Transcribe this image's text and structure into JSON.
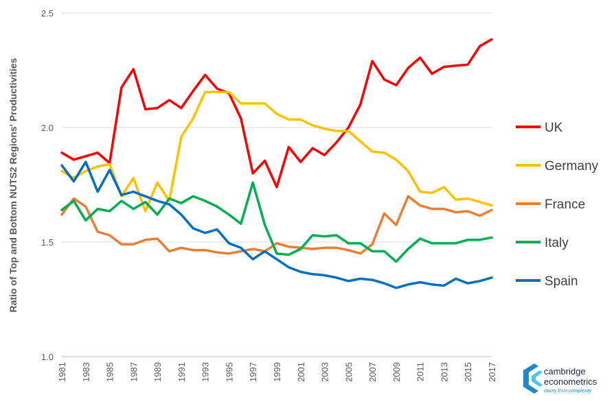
{
  "chart_data": {
    "type": "line",
    "title": "",
    "xlabel": "",
    "ylabel": "Ratio of Top and Bottom NUTS2 Regions' Productivities",
    "ylim": [
      1.0,
      2.5
    ],
    "yticks": [
      "1.0",
      "1.5",
      "2.0",
      "2.5"
    ],
    "grid": "horizontal",
    "legend_position": "right",
    "x": [
      1981,
      1982,
      1983,
      1984,
      1985,
      1986,
      1987,
      1988,
      1989,
      1990,
      1991,
      1992,
      1993,
      1994,
      1995,
      1996,
      1997,
      1998,
      1999,
      2000,
      2001,
      2002,
      2003,
      2004,
      2005,
      2006,
      2007,
      2008,
      2009,
      2010,
      2011,
      2012,
      2013,
      2014,
      2015,
      2016,
      2017
    ],
    "xtick_labels": [
      "1981",
      "1983",
      "1985",
      "1987",
      "1989",
      "1991",
      "1993",
      "1995",
      "1997",
      "1999",
      "2001",
      "2003",
      "2005",
      "2007",
      "2009",
      "2011",
      "2013",
      "2015",
      "2017"
    ],
    "series": [
      {
        "name": "UK",
        "color": "#ff0000",
        "values": [
          1.89,
          1.86,
          1.875,
          1.89,
          1.845,
          2.175,
          2.255,
          2.08,
          2.085,
          2.12,
          2.085,
          2.16,
          2.23,
          2.17,
          2.15,
          2.04,
          1.8,
          1.855,
          1.74,
          1.915,
          1.85,
          1.91,
          1.88,
          1.935,
          2.0,
          2.1,
          2.29,
          2.21,
          2.185,
          2.26,
          2.305,
          2.235,
          2.265,
          2.27,
          2.275,
          2.355,
          2.385
        ]
      },
      {
        "name": "Germany",
        "color": "#ffc000",
        "values": [
          1.81,
          1.78,
          1.81,
          1.83,
          1.84,
          1.7,
          1.78,
          1.635,
          1.76,
          1.68,
          1.96,
          2.04,
          2.155,
          2.155,
          2.155,
          2.105,
          2.105,
          2.105,
          2.06,
          2.035,
          2.035,
          2.01,
          1.995,
          1.985,
          1.985,
          1.94,
          1.895,
          1.89,
          1.86,
          1.81,
          1.72,
          1.715,
          1.74,
          1.685,
          1.69,
          1.675,
          1.66
        ]
      },
      {
        "name": "France",
        "color": "#ed7d31",
        "values": [
          1.62,
          1.69,
          1.655,
          1.545,
          1.53,
          1.49,
          1.49,
          1.51,
          1.515,
          1.46,
          1.475,
          1.465,
          1.465,
          1.455,
          1.45,
          1.46,
          1.47,
          1.46,
          1.495,
          1.48,
          1.475,
          1.47,
          1.475,
          1.475,
          1.465,
          1.45,
          1.49,
          1.625,
          1.575,
          1.7,
          1.66,
          1.645,
          1.645,
          1.63,
          1.635,
          1.615,
          1.64
        ]
      },
      {
        "name": "Italy",
        "color": "#00b050",
        "values": [
          1.64,
          1.68,
          1.595,
          1.645,
          1.635,
          1.68,
          1.645,
          1.675,
          1.62,
          1.69,
          1.67,
          1.7,
          1.68,
          1.655,
          1.62,
          1.58,
          1.76,
          1.575,
          1.45,
          1.445,
          1.47,
          1.53,
          1.525,
          1.53,
          1.495,
          1.495,
          1.46,
          1.46,
          1.415,
          1.47,
          1.515,
          1.495,
          1.495,
          1.495,
          1.51,
          1.51,
          1.52
        ]
      },
      {
        "name": "Spain",
        "color": "#0070c0",
        "values": [
          1.835,
          1.765,
          1.85,
          1.72,
          1.815,
          1.705,
          1.72,
          1.7,
          1.68,
          1.665,
          1.62,
          1.56,
          1.54,
          1.555,
          1.495,
          1.475,
          1.425,
          1.46,
          1.425,
          1.39,
          1.37,
          1.36,
          1.355,
          1.345,
          1.33,
          1.34,
          1.335,
          1.32,
          1.3,
          1.315,
          1.325,
          1.315,
          1.31,
          1.34,
          1.32,
          1.33,
          1.345
        ]
      }
    ]
  },
  "logo": {
    "line1": "cambridge",
    "line2": "econometrics",
    "tagline": "clarity from complexity",
    "colors": [
      "#1e88c8",
      "#4fc3f7"
    ]
  }
}
